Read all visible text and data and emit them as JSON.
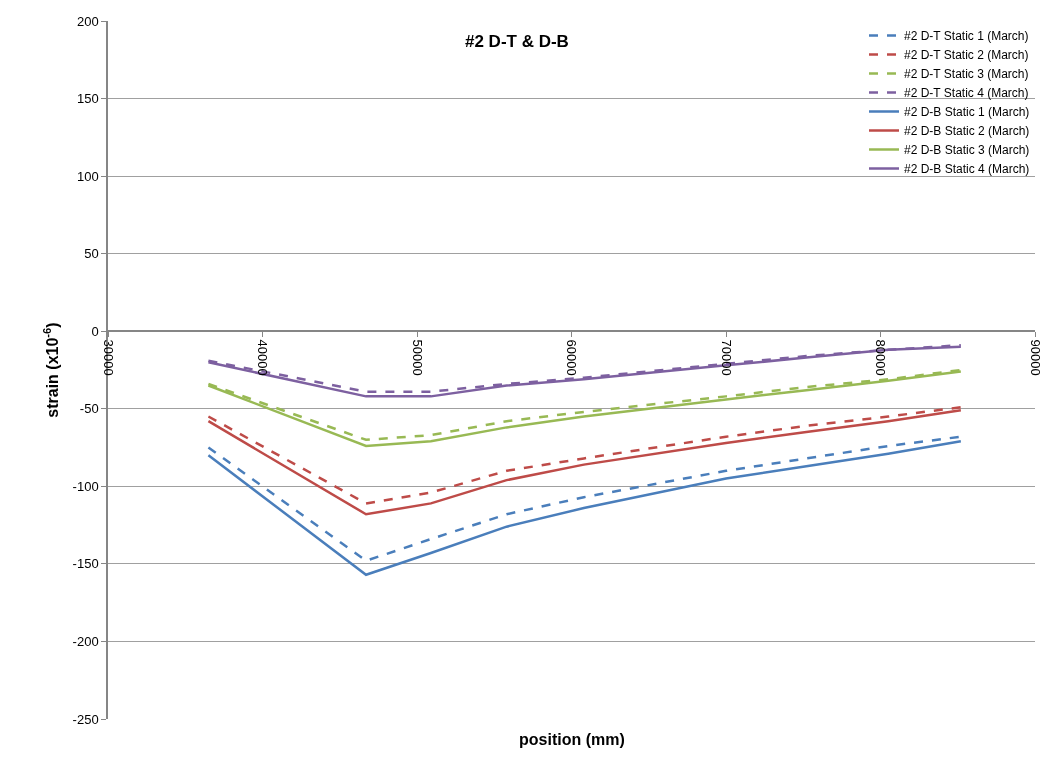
{
  "chart_data": {
    "type": "line",
    "title": "#2 D-T & D-B",
    "xlabel": "position (mm)",
    "ylabel": "strain (x10$^{-6}$)",
    "x": [
      36500,
      46700,
      50900,
      55800,
      60800,
      70000,
      75200,
      80500,
      85200
    ],
    "xlim": [
      30000,
      90000
    ],
    "xticks": [
      30000,
      40000,
      50000,
      60000,
      70000,
      80000,
      90000
    ],
    "ylim": [
      -250,
      200
    ],
    "yticks": [
      -250,
      -200,
      -150,
      -100,
      -50,
      0,
      50,
      100,
      150,
      200
    ],
    "grid": "y",
    "legend": "top right",
    "marker": "none",
    "series": [
      {
        "name": "#2 D-T Static 1 (March)",
        "color": "#4a7ebb",
        "line_style": "dashed",
        "values": [
          -75,
          -148,
          -134,
          -118,
          -107,
          -90,
          -82,
          -74,
          -68
        ]
      },
      {
        "name": "#2 D-T Static 2 (March)",
        "color": "#be4b48",
        "line_style": "dashed",
        "values": [
          -55,
          -111,
          -104,
          -90,
          -82,
          -68,
          -61,
          -55,
          -49
        ]
      },
      {
        "name": "#2 D-T Static 3 (March)",
        "color": "#98b954",
        "line_style": "dashed",
        "values": [
          -34,
          -70,
          -67,
          -58,
          -52,
          -42,
          -36,
          -31,
          -25
        ]
      },
      {
        "name": "#2 D-T Static 4 (March)",
        "color": "#7d60a0",
        "line_style": "dashed",
        "values": [
          -19,
          -39,
          -39,
          -34,
          -30,
          -21,
          -16,
          -12,
          -9
        ]
      },
      {
        "name": "#2 D-B Static 1 (March)",
        "color": "#4a7ebb",
        "line_style": "solid",
        "values": [
          -80,
          -157,
          -143,
          -126,
          -114,
          -95,
          -87,
          -79,
          -71
        ]
      },
      {
        "name": "#2 D-B Static 2 (March)",
        "color": "#be4b48",
        "line_style": "solid",
        "values": [
          -58,
          -118,
          -111,
          -96,
          -86,
          -72,
          -65,
          -58,
          -51
        ]
      },
      {
        "name": "#2 D-B Static 3 (March)",
        "color": "#98b954",
        "line_style": "solid",
        "values": [
          -35,
          -74,
          -71,
          -62,
          -55,
          -44,
          -38,
          -32,
          -26
        ]
      },
      {
        "name": "#2 D-B Static 4 (March)",
        "color": "#7d60a0",
        "line_style": "solid",
        "values": [
          -20,
          -42,
          -42,
          -35,
          -31,
          -22,
          -17,
          -12,
          -10
        ]
      }
    ]
  }
}
